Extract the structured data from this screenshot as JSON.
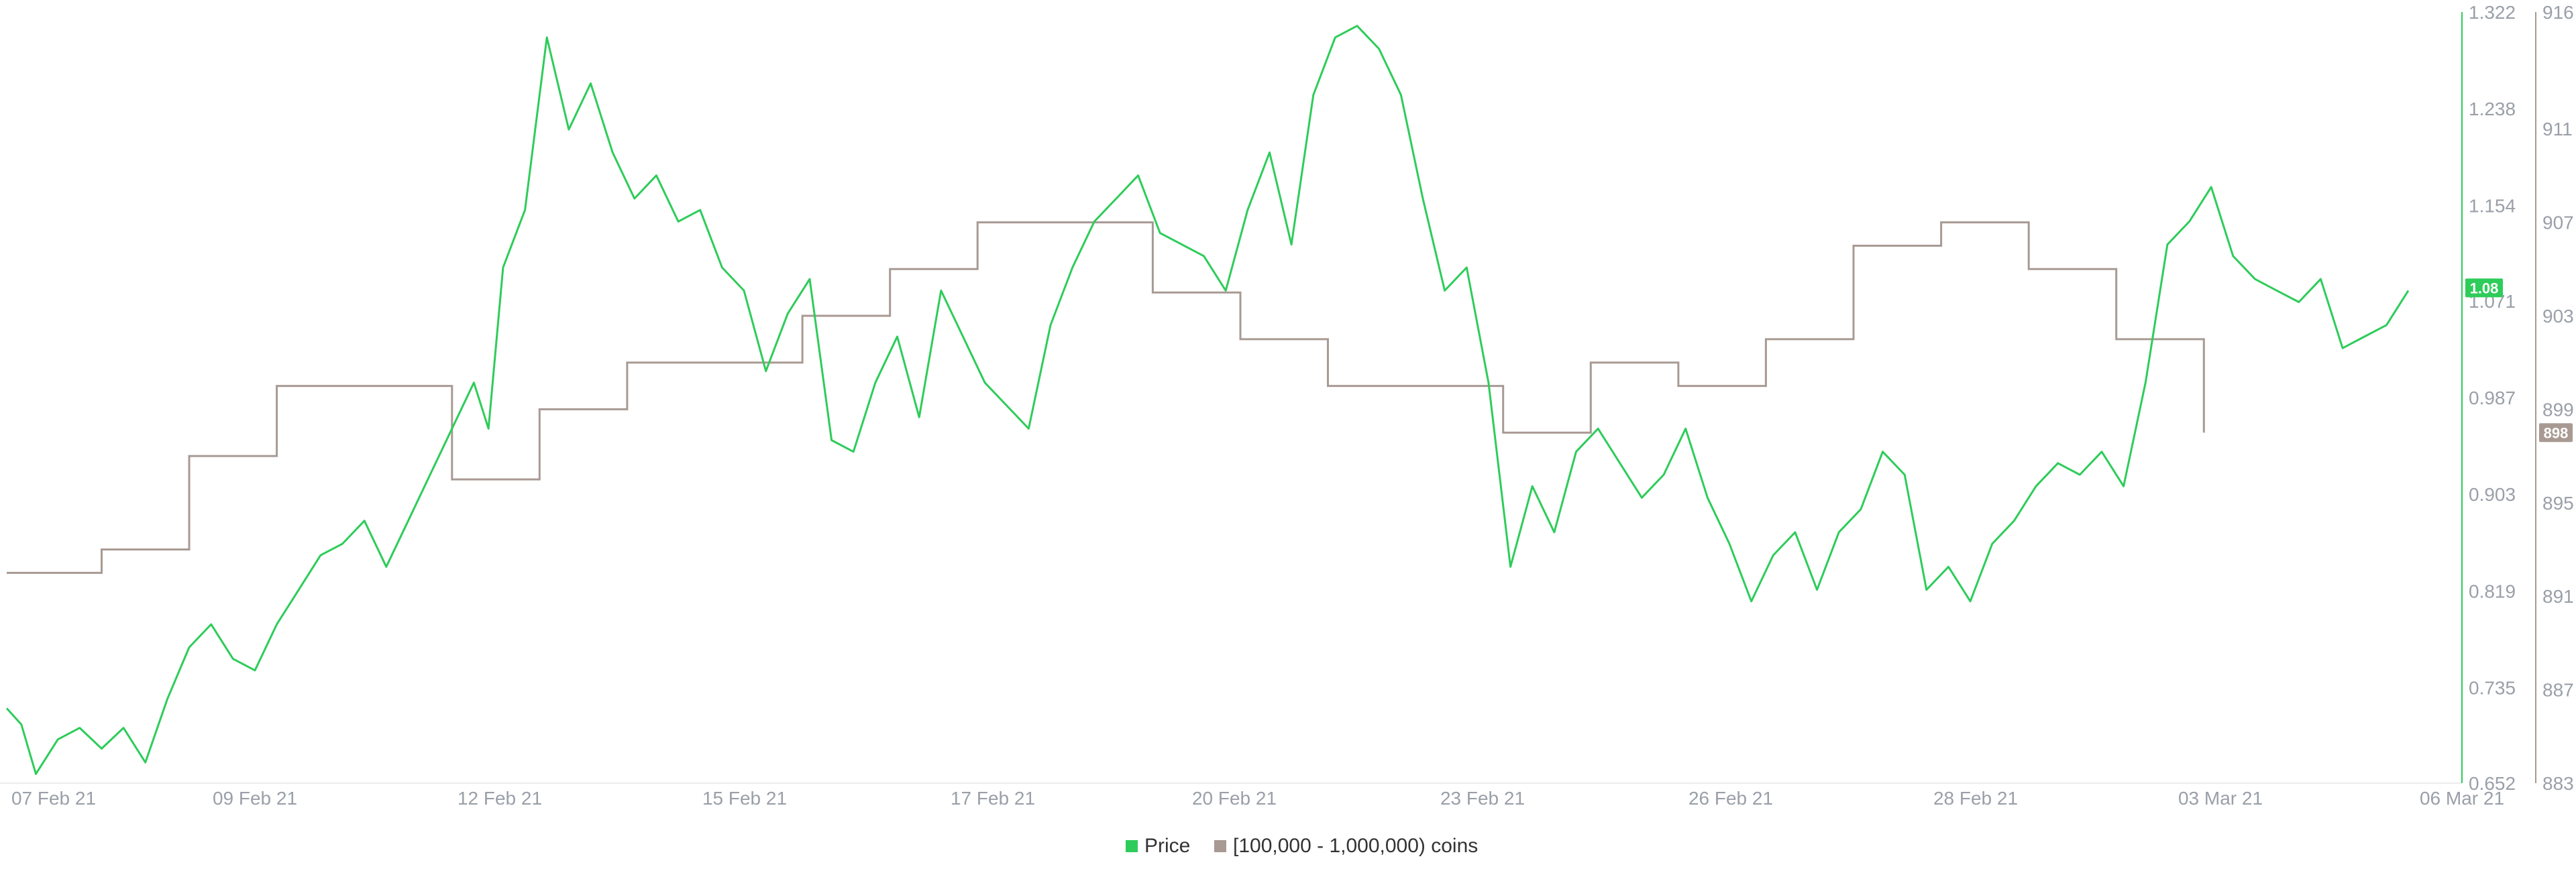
{
  "chart_data": {
    "type": "line",
    "x_ticks": [
      "07 Feb 21",
      "09 Feb 21",
      "12 Feb 21",
      "15 Feb 21",
      "17 Feb 21",
      "20 Feb 21",
      "23 Feb 21",
      "26 Feb 21",
      "28 Feb 21",
      "03 Mar 21",
      "06 Mar 21"
    ],
    "y_left_ticks": [
      "1.322",
      "1.238",
      "1.154",
      "1.071",
      "0.987",
      "0.903",
      "0.819",
      "0.735",
      "0.652"
    ],
    "y_right_ticks": [
      "916",
      "911",
      "907",
      "903",
      "899",
      "895",
      "891",
      "887",
      "883"
    ],
    "y_left_range": [
      0.652,
      1.322
    ],
    "y_right_range": [
      883,
      916
    ],
    "x_range": [
      "2021-02-06T22:00",
      "2021-03-06T08:00"
    ],
    "current_labels": {
      "price": "1.08",
      "holders": "898"
    },
    "legend": [
      "Price",
      "[100,000  - 1,000,000) coins"
    ],
    "colors": {
      "price": "#2ecc5a",
      "holders": "#a89a93",
      "axis_price": "#2ecc5a",
      "axis_holders": "#a89a93",
      "text": "#9a9fa8"
    },
    "grid": false,
    "legend_position": "bottom-center",
    "series": [
      {
        "name": "Price",
        "axis": "left",
        "points": [
          [
            "2021-02-06T22:00",
            0.717
          ],
          [
            "2021-02-07T02:00",
            0.703
          ],
          [
            "2021-02-07T06:00",
            0.66
          ],
          [
            "2021-02-07T12:00",
            0.69
          ],
          [
            "2021-02-07T18:00",
            0.7
          ],
          [
            "2021-02-08T00:00",
            0.682
          ],
          [
            "2021-02-08T06:00",
            0.7
          ],
          [
            "2021-02-08T12:00",
            0.67
          ],
          [
            "2021-02-08T18:00",
            0.725
          ],
          [
            "2021-02-09T00:00",
            0.77
          ],
          [
            "2021-02-09T06:00",
            0.79
          ],
          [
            "2021-02-09T12:00",
            0.76
          ],
          [
            "2021-02-09T18:00",
            0.75
          ],
          [
            "2021-02-10T00:00",
            0.79
          ],
          [
            "2021-02-10T06:00",
            0.82
          ],
          [
            "2021-02-10T12:00",
            0.85
          ],
          [
            "2021-02-10T18:00",
            0.86
          ],
          [
            "2021-02-11T00:00",
            0.88
          ],
          [
            "2021-02-11T06:00",
            0.84
          ],
          [
            "2021-02-11T12:00",
            0.88
          ],
          [
            "2021-02-11T18:00",
            0.92
          ],
          [
            "2021-02-12T00:00",
            0.96
          ],
          [
            "2021-02-12T06:00",
            1.0
          ],
          [
            "2021-02-12T10:00",
            0.96
          ],
          [
            "2021-02-12T14:00",
            1.1
          ],
          [
            "2021-02-12T20:00",
            1.15
          ],
          [
            "2021-02-13T02:00",
            1.3
          ],
          [
            "2021-02-13T08:00",
            1.22
          ],
          [
            "2021-02-13T14:00",
            1.26
          ],
          [
            "2021-02-13T20:00",
            1.2
          ],
          [
            "2021-02-14T02:00",
            1.16
          ],
          [
            "2021-02-14T08:00",
            1.18
          ],
          [
            "2021-02-14T14:00",
            1.14
          ],
          [
            "2021-02-14T20:00",
            1.15
          ],
          [
            "2021-02-15T02:00",
            1.1
          ],
          [
            "2021-02-15T08:00",
            1.08
          ],
          [
            "2021-02-15T14:00",
            1.01
          ],
          [
            "2021-02-15T20:00",
            1.06
          ],
          [
            "2021-02-16T02:00",
            1.09
          ],
          [
            "2021-02-16T08:00",
            0.95
          ],
          [
            "2021-02-16T14:00",
            0.94
          ],
          [
            "2021-02-16T20:00",
            1.0
          ],
          [
            "2021-02-17T02:00",
            1.04
          ],
          [
            "2021-02-17T08:00",
            0.97
          ],
          [
            "2021-02-17T14:00",
            1.08
          ],
          [
            "2021-02-17T20:00",
            1.04
          ],
          [
            "2021-02-18T02:00",
            1.0
          ],
          [
            "2021-02-18T08:00",
            0.98
          ],
          [
            "2021-02-18T14:00",
            0.96
          ],
          [
            "2021-02-18T20:00",
            1.05
          ],
          [
            "2021-02-19T02:00",
            1.1
          ],
          [
            "2021-02-19T08:00",
            1.14
          ],
          [
            "2021-02-19T14:00",
            1.16
          ],
          [
            "2021-02-19T20:00",
            1.18
          ],
          [
            "2021-02-20T02:00",
            1.13
          ],
          [
            "2021-02-20T08:00",
            1.12
          ],
          [
            "2021-02-20T14:00",
            1.11
          ],
          [
            "2021-02-20T20:00",
            1.08
          ],
          [
            "2021-02-21T02:00",
            1.15
          ],
          [
            "2021-02-21T08:00",
            1.2
          ],
          [
            "2021-02-21T14:00",
            1.12
          ],
          [
            "2021-02-21T20:00",
            1.25
          ],
          [
            "2021-02-22T02:00",
            1.3
          ],
          [
            "2021-02-22T08:00",
            1.31
          ],
          [
            "2021-02-22T14:00",
            1.29
          ],
          [
            "2021-02-22T20:00",
            1.25
          ],
          [
            "2021-02-23T02:00",
            1.16
          ],
          [
            "2021-02-23T08:00",
            1.08
          ],
          [
            "2021-02-23T14:00",
            1.1
          ],
          [
            "2021-02-23T20:00",
            1.0
          ],
          [
            "2021-02-24T02:00",
            0.84
          ],
          [
            "2021-02-24T08:00",
            0.91
          ],
          [
            "2021-02-24T14:00",
            0.87
          ],
          [
            "2021-02-24T20:00",
            0.94
          ],
          [
            "2021-02-25T02:00",
            0.96
          ],
          [
            "2021-02-25T08:00",
            0.93
          ],
          [
            "2021-02-25T14:00",
            0.9
          ],
          [
            "2021-02-25T20:00",
            0.92
          ],
          [
            "2021-02-26T02:00",
            0.96
          ],
          [
            "2021-02-26T08:00",
            0.9
          ],
          [
            "2021-02-26T14:00",
            0.86
          ],
          [
            "2021-02-26T20:00",
            0.81
          ],
          [
            "2021-02-27T02:00",
            0.85
          ],
          [
            "2021-02-27T08:00",
            0.87
          ],
          [
            "2021-02-27T14:00",
            0.82
          ],
          [
            "2021-02-27T20:00",
            0.87
          ],
          [
            "2021-02-28T02:00",
            0.89
          ],
          [
            "2021-02-28T08:00",
            0.94
          ],
          [
            "2021-02-28T14:00",
            0.92
          ],
          [
            "2021-02-28T20:00",
            0.82
          ],
          [
            "2021-03-01T02:00",
            0.84
          ],
          [
            "2021-03-01T08:00",
            0.81
          ],
          [
            "2021-03-01T14:00",
            0.86
          ],
          [
            "2021-03-01T20:00",
            0.88
          ],
          [
            "2021-03-02T02:00",
            0.91
          ],
          [
            "2021-03-02T08:00",
            0.93
          ],
          [
            "2021-03-02T14:00",
            0.92
          ],
          [
            "2021-03-02T20:00",
            0.94
          ],
          [
            "2021-03-03T02:00",
            0.91
          ],
          [
            "2021-03-03T08:00",
            1.0
          ],
          [
            "2021-03-03T14:00",
            1.12
          ],
          [
            "2021-03-03T20:00",
            1.14
          ],
          [
            "2021-03-04T02:00",
            1.17
          ],
          [
            "2021-03-04T08:00",
            1.11
          ],
          [
            "2021-03-04T14:00",
            1.09
          ],
          [
            "2021-03-04T20:00",
            1.08
          ],
          [
            "2021-03-05T02:00",
            1.07
          ],
          [
            "2021-03-05T08:00",
            1.09
          ],
          [
            "2021-03-05T14:00",
            1.03
          ],
          [
            "2021-03-05T20:00",
            1.04
          ],
          [
            "2021-03-06T02:00",
            1.05
          ],
          [
            "2021-03-06T08:00",
            1.08
          ]
        ]
      },
      {
        "name": "[100,000  - 1,000,000) coins",
        "axis": "right",
        "points": [
          [
            "2021-02-06T22:00",
            892
          ],
          [
            "2021-02-08T00:00",
            892
          ],
          [
            "2021-02-08T00:00",
            893
          ],
          [
            "2021-02-09T00:00",
            893
          ],
          [
            "2021-02-09T00:00",
            897
          ],
          [
            "2021-02-10T00:00",
            897
          ],
          [
            "2021-02-10T00:00",
            900
          ],
          [
            "2021-02-12T00:00",
            900
          ],
          [
            "2021-02-12T00:00",
            896
          ],
          [
            "2021-02-13T00:00",
            896
          ],
          [
            "2021-02-13T00:00",
            899
          ],
          [
            "2021-02-14T00:00",
            899
          ],
          [
            "2021-02-14T00:00",
            901
          ],
          [
            "2021-02-16T00:00",
            901
          ],
          [
            "2021-02-16T00:00",
            903
          ],
          [
            "2021-02-17T00:00",
            903
          ],
          [
            "2021-02-17T00:00",
            905
          ],
          [
            "2021-02-18T00:00",
            905
          ],
          [
            "2021-02-18T00:00",
            907
          ],
          [
            "2021-02-20T00:00",
            907
          ],
          [
            "2021-02-20T00:00",
            904
          ],
          [
            "2021-02-21T00:00",
            904
          ],
          [
            "2021-02-21T00:00",
            902
          ],
          [
            "2021-02-22T00:00",
            902
          ],
          [
            "2021-02-22T00:00",
            900
          ],
          [
            "2021-02-24T00:00",
            900
          ],
          [
            "2021-02-24T00:00",
            898
          ],
          [
            "2021-02-25T00:00",
            898
          ],
          [
            "2021-02-25T00:00",
            901
          ],
          [
            "2021-02-26T00:00",
            901
          ],
          [
            "2021-02-26T00:00",
            900
          ],
          [
            "2021-02-27T00:00",
            900
          ],
          [
            "2021-02-27T00:00",
            902
          ],
          [
            "2021-02-28T00:00",
            902
          ],
          [
            "2021-02-28T00:00",
            906
          ],
          [
            "2021-03-01T00:00",
            906
          ],
          [
            "2021-03-01T00:00",
            907
          ],
          [
            "2021-03-02T00:00",
            907
          ],
          [
            "2021-03-02T00:00",
            905
          ],
          [
            "2021-03-03T00:00",
            905
          ],
          [
            "2021-03-03T00:00",
            902
          ],
          [
            "2021-03-04T00:00",
            902
          ],
          [
            "2021-03-04T00:00",
            898
          ]
        ]
      }
    ]
  }
}
